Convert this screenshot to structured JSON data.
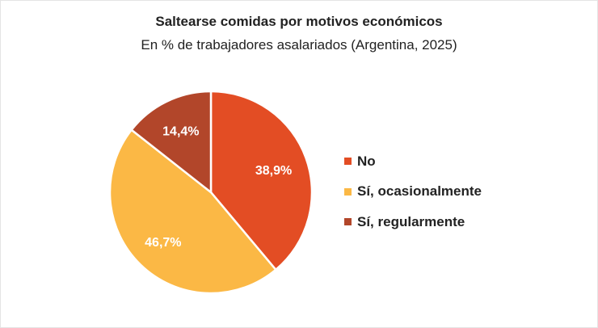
{
  "chart_data": {
    "type": "pie",
    "title": "Saltearse comidas por motivos económicos",
    "subtitle": "En % de trabajadores asalariados (Argentina, 2025)",
    "categories": [
      "No",
      "Sí, ocasionalmente",
      "Sí, regularmente"
    ],
    "values": [
      38.9,
      46.7,
      14.4
    ],
    "data_labels": [
      "38,9%",
      "46,7%",
      "14,4%"
    ],
    "colors": [
      "#E34D24",
      "#FBB845",
      "#B2462A"
    ],
    "start_angle": "12 o'clock, clockwise",
    "legend_placement": "right"
  }
}
